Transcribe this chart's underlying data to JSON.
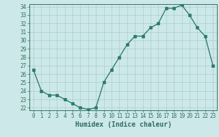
{
  "title": "",
  "xlabel": "Humidex (Indice chaleur)",
  "ylabel": "",
  "x": [
    0,
    1,
    2,
    3,
    4,
    5,
    6,
    7,
    8,
    9,
    10,
    11,
    12,
    13,
    14,
    15,
    16,
    17,
    18,
    19,
    20,
    21,
    22,
    23
  ],
  "y": [
    26.5,
    24.0,
    23.5,
    23.5,
    23.0,
    22.5,
    22.0,
    21.8,
    22.0,
    25.0,
    26.5,
    28.0,
    29.5,
    30.5,
    30.5,
    31.5,
    32.0,
    33.8,
    33.8,
    34.2,
    33.0,
    31.5,
    30.5,
    27.0
  ],
  "line_color": "#2d7a6e",
  "marker": "s",
  "marker_size": 2.2,
  "bg_color": "#cde8e8",
  "grid_color": "#a8cccc",
  "ylim_min": 22,
  "ylim_max": 34,
  "yticks": [
    22,
    23,
    24,
    25,
    26,
    27,
    28,
    29,
    30,
    31,
    32,
    33,
    34
  ],
  "xticks": [
    0,
    1,
    2,
    3,
    4,
    5,
    6,
    7,
    8,
    9,
    10,
    11,
    12,
    13,
    14,
    15,
    16,
    17,
    18,
    19,
    20,
    21,
    22,
    23
  ],
  "tick_label_fontsize": 5.5,
  "xlabel_fontsize": 7.0,
  "tick_color": "#2d6e62",
  "axes_color": "#2d6e62",
  "linewidth": 1.0
}
